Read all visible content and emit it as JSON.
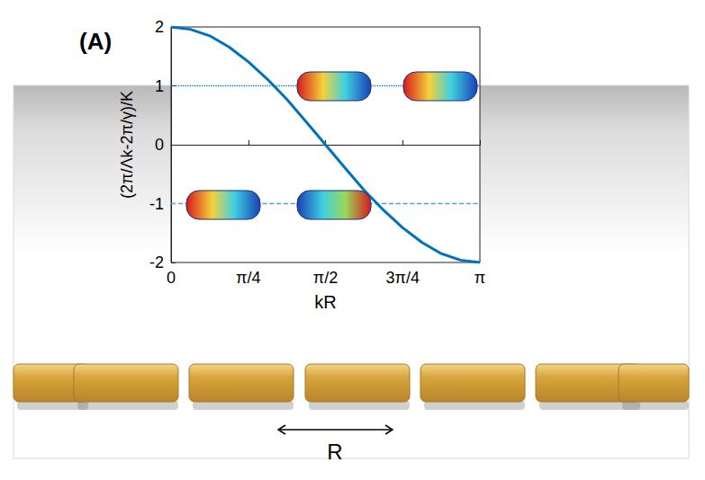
{
  "chart_data": {
    "type": "line",
    "xlabel": "kR",
    "ylabel": "(2π/Λk-2π/γ)/K",
    "annotations": [
      {
        "text": "(A)"
      },
      {
        "text": "R"
      }
    ],
    "xlim": [
      0,
      3.1416
    ],
    "xticks": [
      0,
      {
        "value": 0.7854,
        "label": "π/4"
      },
      {
        "value": 1.5708,
        "label": "π/2"
      },
      {
        "value": 2.3562,
        "label": "3π/4"
      },
      {
        "value": 3.1416,
        "label": "π"
      }
    ],
    "ylim": [
      -2,
      2
    ],
    "yticks": [
      -2,
      -1,
      0,
      1,
      2
    ],
    "grid": false,
    "series": [
      {
        "color": "#0072bd",
        "line_style": "solid",
        "x": [
          0,
          0.196,
          0.393,
          0.589,
          0.785,
          0.982,
          1.178,
          1.374,
          1.571,
          1.767,
          1.963,
          2.16,
          2.356,
          2.553,
          2.749,
          2.945,
          3.1416
        ],
        "values": [
          2,
          1.96,
          1.85,
          1.66,
          1.41,
          1.11,
          0.77,
          0.39,
          0,
          -0.39,
          -0.77,
          -1.11,
          -1.41,
          -1.66,
          -1.85,
          -1.96,
          -2
        ]
      },
      {
        "color": "#0072bd",
        "line_style": "dotted",
        "x": [
          0,
          3.1416
        ],
        "values": [
          1,
          1
        ]
      },
      {
        "color": "#4da3d8",
        "line_style": "dashed",
        "x": [
          0,
          3.1416
        ],
        "values": [
          -1,
          -1
        ]
      }
    ]
  }
}
